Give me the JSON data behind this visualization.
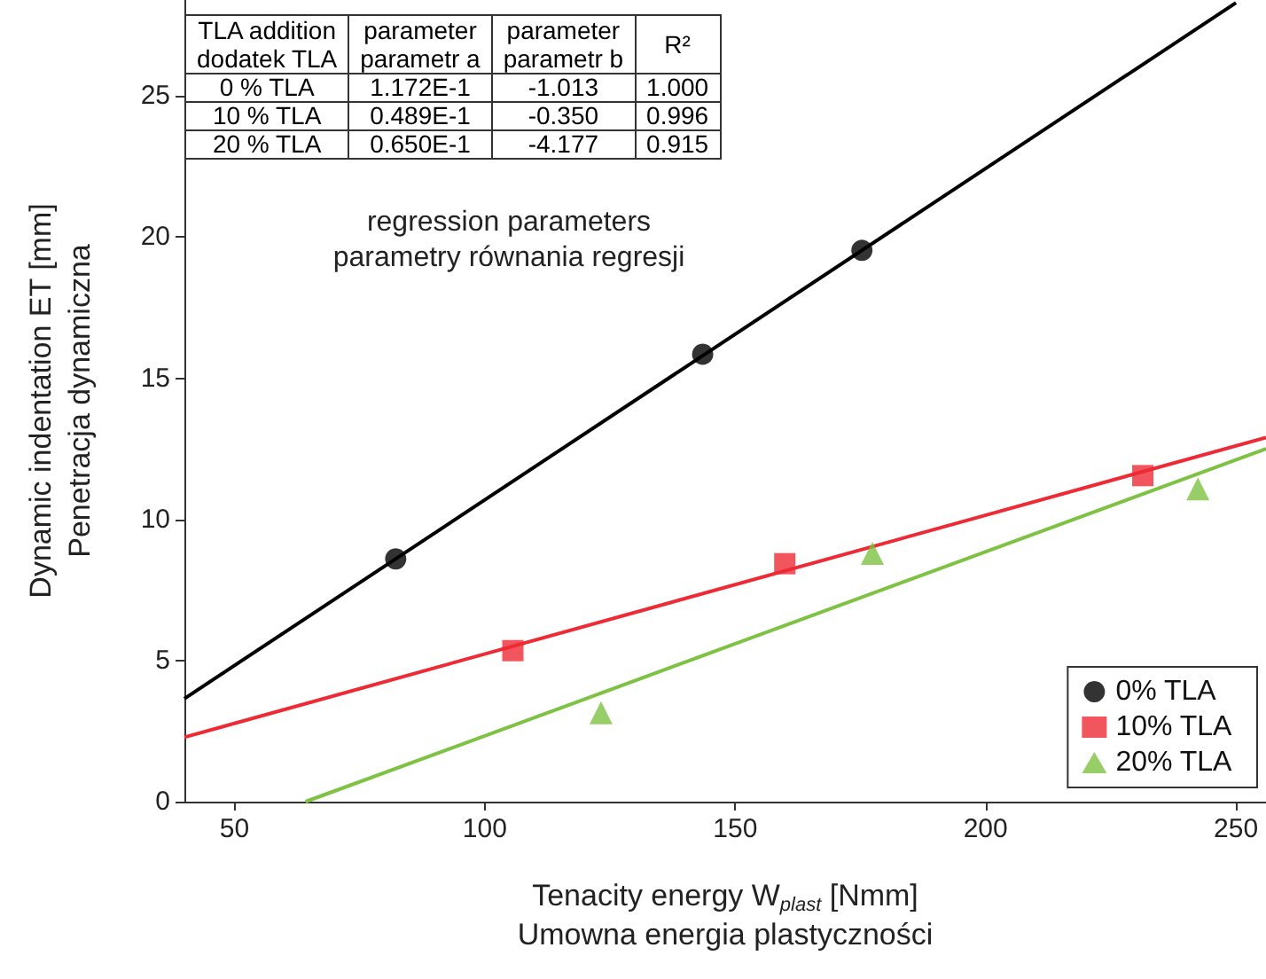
{
  "chart_data": {
    "type": "scatter",
    "xlabel": "Tenacity energy W$_{plast}$ [Nmm]\nUmowna energia plastyczności",
    "ylabel": "Dynamic indentation ET [mm]\nPenetracja dynamiczna",
    "xlim": [
      40,
      256
    ],
    "xticks": [
      50,
      100,
      150,
      200,
      250
    ],
    "ylim": [
      0,
      28.4
    ],
    "yticks": [
      0,
      5,
      10,
      15,
      20,
      25
    ],
    "grid": false,
    "legend": "bottom right",
    "series": [
      {
        "name": "0% TLA",
        "color": "#000000",
        "marker": "circle",
        "x": [
          82.2,
          143.5,
          175.3
        ],
        "values": [
          8.6,
          15.85,
          19.53
        ]
      },
      {
        "name": "10% TLA",
        "color": "#ee2a35",
        "marker": "square",
        "x": [
          105.6,
          159.9,
          231.4
        ],
        "values": [
          5.35,
          8.43,
          11.55
        ]
      },
      {
        "name": "20% TLA",
        "color": "#7dc242",
        "marker": "triangle",
        "x": [
          123.2,
          177.4,
          242.4
        ],
        "values": [
          3.15,
          8.8,
          11.08
        ]
      },
      {
        "type": "line",
        "color": "#000000",
        "marker": "none",
        "x": [
          40,
          250
        ],
        "values": [
          3.65,
          28.3
        ]
      },
      {
        "type": "line",
        "color": "#ee2a35",
        "marker": "none",
        "x": [
          40,
          256
        ],
        "values": [
          2.28,
          12.9
        ]
      },
      {
        "type": "line",
        "color": "#7dc242",
        "marker": "none",
        "x": [
          64.2,
          256
        ],
        "values": [
          0,
          12.5
        ]
      }
    ],
    "annotations": [
      "TLA addition\ndodatek TLA",
      "parameter\nparametr a",
      "parameter\nparametr b",
      "R²",
      "0 % TLA",
      "1.172E-1",
      "-1.013",
      "1.000",
      "10 % TLA",
      "0.489E-1",
      "-0.350",
      "0.996",
      "20 % TLA",
      "0.650E-1",
      "-4.177",
      "0.915",
      "regression parameters\nparametry równania regresji"
    ]
  }
}
